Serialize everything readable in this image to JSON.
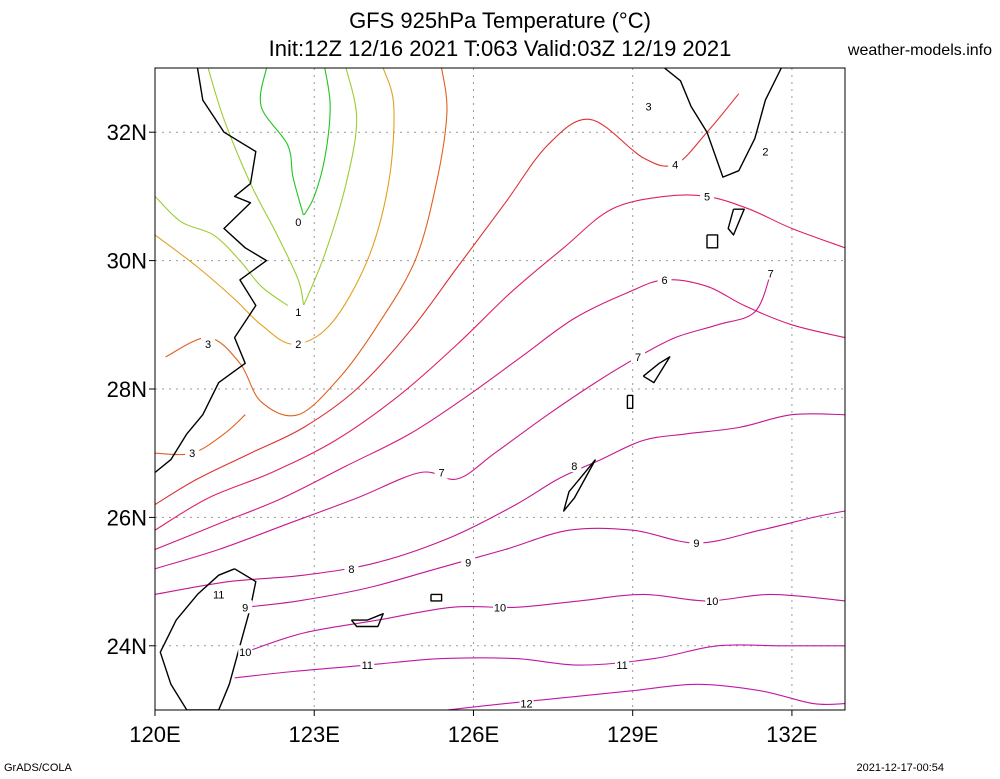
{
  "title": {
    "line1": "GFS 925hPa Temperature (°C)",
    "line2": "Init:12Z 12/16 2021 T:063 Valid:03Z 12/19 2021"
  },
  "site": "weather-models.info",
  "footer": {
    "left": "GrADS/COLA",
    "right": "2021-12-17-00:54"
  },
  "axes": {
    "lon_range": [
      120,
      133
    ],
    "lat_range": [
      23,
      33
    ],
    "x_ticks": [
      {
        "value": 120,
        "label": "120E"
      },
      {
        "value": 123,
        "label": "123E"
      },
      {
        "value": 126,
        "label": "126E"
      },
      {
        "value": 129,
        "label": "129E"
      },
      {
        "value": 132,
        "label": "132E"
      }
    ],
    "y_ticks": [
      {
        "value": 24,
        "label": "24N"
      },
      {
        "value": 26,
        "label": "26N"
      },
      {
        "value": 28,
        "label": "28N"
      },
      {
        "value": 30,
        "label": "30N"
      },
      {
        "value": 32,
        "label": "32N"
      }
    ],
    "grid": "dotted"
  },
  "colors": {
    "t0": "#22c422",
    "t1": "#9acd32",
    "t2": "#e0a020",
    "t3": "#e06020",
    "t4": "#e03030",
    "t5": "#e0206a",
    "t6": "#d61a7a",
    "t7": "#cc1a8a",
    "t8": "#c41890",
    "t9": "#c01898",
    "t10": "#c0189e",
    "t11": "#c018a6",
    "t12": "#c018ae",
    "coast": "#000000"
  },
  "contour_labels": [
    {
      "text": "0",
      "lon": 122.7,
      "lat": 30.6
    },
    {
      "text": "1",
      "lon": 122.7,
      "lat": 29.2
    },
    {
      "text": "2",
      "lon": 122.7,
      "lat": 28.7
    },
    {
      "text": "3",
      "lon": 121.0,
      "lat": 28.7
    },
    {
      "text": "3",
      "lon": 120.7,
      "lat": 27.0
    },
    {
      "text": "3",
      "lon": 129.3,
      "lat": 32.4
    },
    {
      "text": "4",
      "lon": 129.8,
      "lat": 31.5
    },
    {
      "text": "2",
      "lon": 131.5,
      "lat": 31.7
    },
    {
      "text": "5",
      "lon": 130.4,
      "lat": 31.0
    },
    {
      "text": "6",
      "lon": 129.6,
      "lat": 29.7
    },
    {
      "text": "7",
      "lon": 131.6,
      "lat": 29.8
    },
    {
      "text": "7",
      "lon": 129.1,
      "lat": 28.5
    },
    {
      "text": "7",
      "lon": 125.4,
      "lat": 26.7
    },
    {
      "text": "8",
      "lon": 127.9,
      "lat": 26.8
    },
    {
      "text": "8",
      "lon": 123.7,
      "lat": 25.2
    },
    {
      "text": "9",
      "lon": 125.9,
      "lat": 25.3
    },
    {
      "text": "9",
      "lon": 130.2,
      "lat": 25.6
    },
    {
      "text": "10",
      "lon": 126.5,
      "lat": 24.6
    },
    {
      "text": "10",
      "lon": 130.5,
      "lat": 24.7
    },
    {
      "text": "11",
      "lon": 121.2,
      "lat": 24.8
    },
    {
      "text": "9",
      "lon": 121.7,
      "lat": 24.6
    },
    {
      "text": "10",
      "lon": 121.7,
      "lat": 23.9
    },
    {
      "text": "11",
      "lon": 124.0,
      "lat": 23.7
    },
    {
      "text": "11",
      "lon": 128.8,
      "lat": 23.7
    },
    {
      "text": "12",
      "lon": 127.0,
      "lat": 23.1
    }
  ],
  "contours": [
    {
      "level": 0,
      "color_key": "t0",
      "points": [
        [
          122.1,
          33
        ],
        [
          122.0,
          32.4
        ],
        [
          122.5,
          31.8
        ],
        [
          122.6,
          31.3
        ],
        [
          122.8,
          30.7
        ]
      ]
    },
    {
      "level": 0,
      "color_key": "t0",
      "points": [
        [
          123.2,
          33
        ],
        [
          123.3,
          32.4
        ],
        [
          123.2,
          31.6
        ],
        [
          123.0,
          31.0
        ],
        [
          122.8,
          30.7
        ]
      ]
    },
    {
      "level": 1,
      "color_key": "t1",
      "points": [
        [
          121.0,
          33
        ],
        [
          121.3,
          32.2
        ],
        [
          121.8,
          31.2
        ],
        [
          122.3,
          30.4
        ],
        [
          122.7,
          29.7
        ],
        [
          122.8,
          29.3
        ]
      ]
    },
    {
      "level": 1,
      "color_key": "t1",
      "points": [
        [
          122.8,
          29.3
        ],
        [
          123.2,
          30.1
        ],
        [
          123.6,
          31.2
        ],
        [
          123.8,
          32.2
        ],
        [
          123.6,
          33
        ]
      ]
    },
    {
      "level": 1,
      "color_key": "t1",
      "points": [
        [
          120,
          31.0
        ],
        [
          120.5,
          30.6
        ],
        [
          121.1,
          30.4
        ],
        [
          121.6,
          30.0
        ],
        [
          122.0,
          29.6
        ],
        [
          122.5,
          29.3
        ]
      ]
    },
    {
      "level": 2,
      "color_key": "t2",
      "points": [
        [
          120,
          30.4
        ],
        [
          120.8,
          29.9
        ],
        [
          121.5,
          29.4
        ],
        [
          122.0,
          29.0
        ],
        [
          122.6,
          28.7
        ],
        [
          123.3,
          29.0
        ],
        [
          124.0,
          30.0
        ],
        [
          124.4,
          31.2
        ],
        [
          124.5,
          32.4
        ],
        [
          124.3,
          33
        ]
      ]
    },
    {
      "level": 3,
      "color_key": "t3",
      "points": [
        [
          120.2,
          28.5
        ],
        [
          121.0,
          28.8
        ],
        [
          121.6,
          28.4
        ],
        [
          122.0,
          27.8
        ],
        [
          122.7,
          27.6
        ],
        [
          123.5,
          28.2
        ],
        [
          124.2,
          29.0
        ],
        [
          124.9,
          30.0
        ],
        [
          125.3,
          31.2
        ],
        [
          125.5,
          32.3
        ],
        [
          125.4,
          33
        ]
      ]
    },
    {
      "level": 3,
      "color_key": "t3",
      "points": [
        [
          120,
          27.0
        ],
        [
          120.7,
          27.0
        ],
        [
          121.3,
          27.3
        ],
        [
          121.7,
          27.6
        ]
      ]
    },
    {
      "level": 4,
      "color_key": "t4",
      "points": [
        [
          120,
          26.2
        ],
        [
          120.8,
          26.6
        ],
        [
          121.8,
          27.0
        ],
        [
          122.8,
          27.4
        ],
        [
          123.8,
          28.0
        ],
        [
          124.8,
          28.9
        ],
        [
          125.7,
          29.9
        ],
        [
          126.6,
          30.9
        ],
        [
          127.4,
          31.8
        ],
        [
          128.2,
          32.2
        ],
        [
          129.2,
          31.6
        ],
        [
          129.8,
          31.5
        ],
        [
          130.4,
          32.0
        ],
        [
          131.0,
          32.6
        ]
      ]
    },
    {
      "level": 5,
      "color_key": "t5",
      "points": [
        [
          120,
          25.8
        ],
        [
          121.0,
          26.3
        ],
        [
          122.2,
          26.7
        ],
        [
          123.4,
          27.2
        ],
        [
          124.6,
          27.9
        ],
        [
          125.7,
          28.7
        ],
        [
          126.7,
          29.5
        ],
        [
          127.7,
          30.2
        ],
        [
          128.6,
          30.8
        ],
        [
          129.6,
          31.0
        ],
        [
          130.4,
          31.0
        ],
        [
          131.2,
          30.8
        ],
        [
          132.0,
          30.5
        ],
        [
          133,
          30.2
        ]
      ]
    },
    {
      "level": 6,
      "color_key": "t6",
      "points": [
        [
          120,
          25.5
        ],
        [
          121.2,
          25.9
        ],
        [
          122.4,
          26.3
        ],
        [
          123.6,
          26.8
        ],
        [
          124.8,
          27.3
        ],
        [
          125.9,
          27.9
        ],
        [
          126.9,
          28.5
        ],
        [
          127.9,
          29.1
        ],
        [
          128.9,
          29.5
        ],
        [
          129.6,
          29.7
        ],
        [
          130.4,
          29.6
        ],
        [
          131.1,
          29.3
        ],
        [
          132.0,
          29.0
        ],
        [
          133,
          28.8
        ]
      ]
    },
    {
      "level": 7,
      "color_key": "t7",
      "points": [
        [
          120,
          25.2
        ],
        [
          121.2,
          25.5
        ],
        [
          122.5,
          25.9
        ],
        [
          123.8,
          26.3
        ],
        [
          125.0,
          26.7
        ],
        [
          125.7,
          26.6
        ],
        [
          126.4,
          27.0
        ],
        [
          127.4,
          27.6
        ],
        [
          128.3,
          28.1
        ],
        [
          129.1,
          28.5
        ],
        [
          129.8,
          28.8
        ],
        [
          130.6,
          29.0
        ],
        [
          131.3,
          29.2
        ],
        [
          131.6,
          29.8
        ]
      ]
    },
    {
      "level": 8,
      "color_key": "t8",
      "points": [
        [
          120,
          24.8
        ],
        [
          121.4,
          25.0
        ],
        [
          122.8,
          25.1
        ],
        [
          124.2,
          25.3
        ],
        [
          125.6,
          25.7
        ],
        [
          126.8,
          26.2
        ],
        [
          127.6,
          26.6
        ],
        [
          128.4,
          26.9
        ],
        [
          129.2,
          27.2
        ],
        [
          130.0,
          27.3
        ],
        [
          131.0,
          27.4
        ],
        [
          132.0,
          27.6
        ],
        [
          133,
          27.6
        ]
      ]
    },
    {
      "level": 9,
      "color_key": "t9",
      "points": [
        [
          121.7,
          24.6
        ],
        [
          122.7,
          24.7
        ],
        [
          124.0,
          24.9
        ],
        [
          125.3,
          25.2
        ],
        [
          126.6,
          25.5
        ],
        [
          127.8,
          25.8
        ],
        [
          129.0,
          25.8
        ],
        [
          130.2,
          25.6
        ],
        [
          131.4,
          25.8
        ],
        [
          132.4,
          26.0
        ],
        [
          133,
          26.1
        ]
      ]
    },
    {
      "level": 10,
      "color_key": "t10",
      "points": [
        [
          121.7,
          23.9
        ],
        [
          122.8,
          24.2
        ],
        [
          124.2,
          24.4
        ],
        [
          125.6,
          24.6
        ],
        [
          126.8,
          24.6
        ],
        [
          128.0,
          24.7
        ],
        [
          129.2,
          24.8
        ],
        [
          130.4,
          24.7
        ],
        [
          131.6,
          24.8
        ],
        [
          133,
          24.7
        ]
      ]
    },
    {
      "level": 11,
      "color_key": "t11",
      "points": [
        [
          121.5,
          23.5
        ],
        [
          122.6,
          23.6
        ],
        [
          124.0,
          23.7
        ],
        [
          125.4,
          23.8
        ],
        [
          126.8,
          23.8
        ],
        [
          128.0,
          23.7
        ],
        [
          129.4,
          23.8
        ],
        [
          130.6,
          24.0
        ],
        [
          131.8,
          24.0
        ],
        [
          133,
          24.0
        ]
      ]
    },
    {
      "level": 12,
      "color_key": "t12",
      "points": [
        [
          125.5,
          23.0
        ],
        [
          126.6,
          23.1
        ],
        [
          127.8,
          23.2
        ],
        [
          129.0,
          23.3
        ],
        [
          130.2,
          23.4
        ],
        [
          131.4,
          23.3
        ],
        [
          132.4,
          23.1
        ],
        [
          133,
          23.1
        ]
      ]
    }
  ],
  "coastlines": [
    {
      "name": "china-coast",
      "points": [
        [
          120.8,
          33
        ],
        [
          120.9,
          32.5
        ],
        [
          121.3,
          32.0
        ],
        [
          121.9,
          31.7
        ],
        [
          121.8,
          31.2
        ],
        [
          121.5,
          31.0
        ],
        [
          121.8,
          30.9
        ],
        [
          121.3,
          30.5
        ],
        [
          121.7,
          30.2
        ],
        [
          122.1,
          30.0
        ],
        [
          121.6,
          29.7
        ],
        [
          121.9,
          29.3
        ],
        [
          121.5,
          28.8
        ],
        [
          121.7,
          28.4
        ],
        [
          121.2,
          28.1
        ],
        [
          120.9,
          27.6
        ],
        [
          120.6,
          27.3
        ],
        [
          120.3,
          26.9
        ],
        [
          120.0,
          26.7
        ]
      ]
    },
    {
      "name": "taiwan",
      "points": [
        [
          121.5,
          25.2
        ],
        [
          121.9,
          25.0
        ],
        [
          121.8,
          24.6
        ],
        [
          121.6,
          24.0
        ],
        [
          121.4,
          23.4
        ],
        [
          121.2,
          23.0
        ],
        [
          120.6,
          23.0
        ],
        [
          120.3,
          23.4
        ],
        [
          120.1,
          23.9
        ],
        [
          120.4,
          24.4
        ],
        [
          120.8,
          24.8
        ],
        [
          121.2,
          25.1
        ],
        [
          121.5,
          25.2
        ]
      ]
    },
    {
      "name": "kyushu",
      "points": [
        [
          129.6,
          33
        ],
        [
          129.9,
          32.8
        ],
        [
          130.1,
          32.4
        ],
        [
          130.4,
          32.0
        ],
        [
          130.7,
          31.3
        ],
        [
          131.0,
          31.4
        ],
        [
          131.3,
          31.9
        ],
        [
          131.5,
          32.5
        ],
        [
          131.8,
          33
        ]
      ]
    },
    {
      "name": "tanegashima",
      "points": [
        [
          130.9,
          30.8
        ],
        [
          131.1,
          30.8
        ],
        [
          130.9,
          30.4
        ],
        [
          130.8,
          30.5
        ],
        [
          130.9,
          30.8
        ]
      ]
    },
    {
      "name": "yakushima",
      "points": [
        [
          130.4,
          30.4
        ],
        [
          130.6,
          30.4
        ],
        [
          130.6,
          30.2
        ],
        [
          130.4,
          30.2
        ],
        [
          130.4,
          30.4
        ]
      ]
    },
    {
      "name": "amami-oshima",
      "points": [
        [
          129.2,
          28.2
        ],
        [
          129.5,
          28.4
        ],
        [
          129.7,
          28.5
        ],
        [
          129.4,
          28.1
        ],
        [
          129.2,
          28.2
        ]
      ]
    },
    {
      "name": "tokunoshima",
      "points": [
        [
          128.9,
          27.9
        ],
        [
          129.0,
          27.9
        ],
        [
          129.0,
          27.7
        ],
        [
          128.9,
          27.7
        ],
        [
          128.9,
          27.9
        ]
      ]
    },
    {
      "name": "okinawa",
      "points": [
        [
          128.3,
          26.9
        ],
        [
          128.0,
          26.6
        ],
        [
          127.8,
          26.4
        ],
        [
          127.7,
          26.1
        ],
        [
          127.9,
          26.3
        ],
        [
          128.1,
          26.6
        ],
        [
          128.3,
          26.9
        ]
      ]
    },
    {
      "name": "miyako",
      "points": [
        [
          125.2,
          24.8
        ],
        [
          125.4,
          24.8
        ],
        [
          125.4,
          24.7
        ],
        [
          125.2,
          24.7
        ],
        [
          125.2,
          24.8
        ]
      ]
    },
    {
      "name": "ishigaki-iriomote",
      "points": [
        [
          123.7,
          24.4
        ],
        [
          124.0,
          24.4
        ],
        [
          124.3,
          24.5
        ],
        [
          124.2,
          24.3
        ],
        [
          123.8,
          24.3
        ],
        [
          123.7,
          24.4
        ]
      ]
    }
  ]
}
